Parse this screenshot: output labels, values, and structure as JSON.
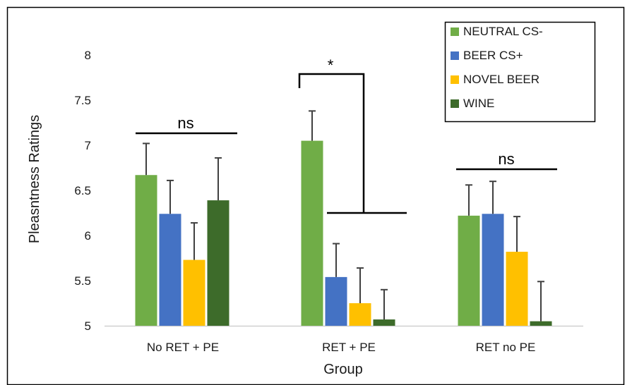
{
  "chart_data": {
    "type": "bar",
    "title": "",
    "xlabel": "Group",
    "ylabel": "Pleasntness Ratings",
    "ylim": [
      5,
      8
    ],
    "yticks": [
      "5",
      "5.5",
      "6",
      "6.5",
      "7",
      "7.5",
      "8"
    ],
    "grid": false,
    "legend_position": "top-right",
    "categories": [
      "No RET + PE",
      "RET + PE",
      "RET no PE"
    ],
    "series": [
      {
        "name": "NEUTRAL CS-",
        "color": "#70ad47",
        "values": [
          6.67,
          7.05,
          6.22
        ],
        "errors": [
          0.35,
          0.33,
          0.34
        ]
      },
      {
        "name": "BEER CS+",
        "color": "#4472c4",
        "values": [
          6.24,
          5.54,
          6.24
        ],
        "errors": [
          0.37,
          0.37,
          0.36
        ]
      },
      {
        "name": "NOVEL BEER",
        "color": "#ffc000",
        "values": [
          5.73,
          5.25,
          5.82
        ],
        "errors": [
          0.41,
          0.39,
          0.39
        ]
      },
      {
        "name": "WINE",
        "color": "#3d6b2a",
        "values": [
          6.39,
          5.07,
          5.05
        ],
        "errors": [
          0.47,
          0.33,
          0.44
        ]
      }
    ],
    "annotations": {
      "group1": "ns",
      "group2": "*",
      "group3": "ns"
    }
  }
}
